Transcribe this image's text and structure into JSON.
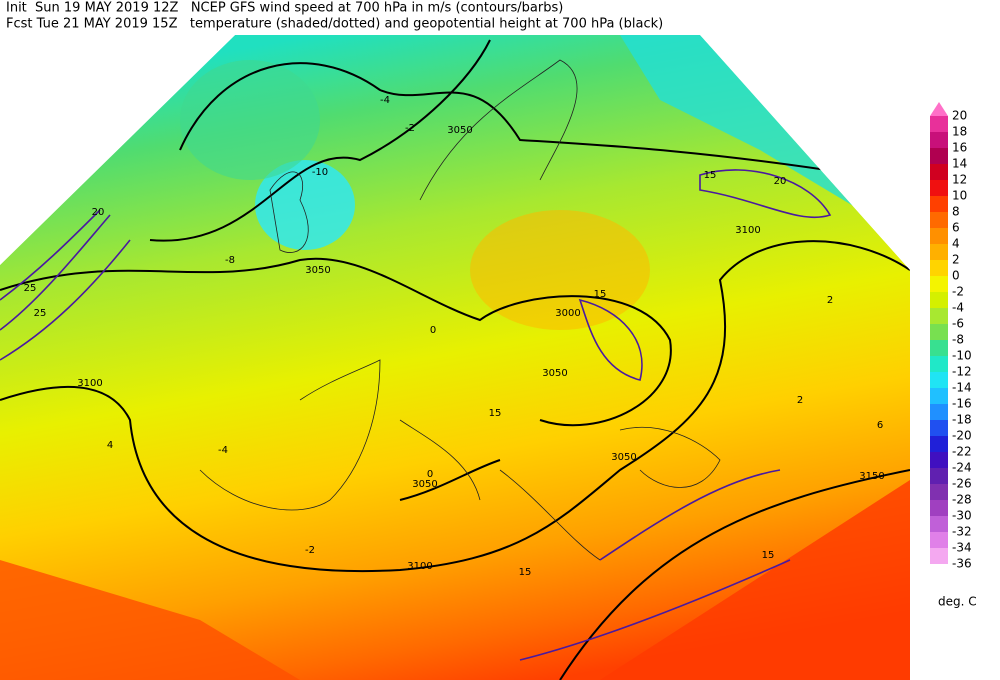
{
  "header": {
    "line1": "Init  Sun 19 MAY 2019 12Z   NCEP GFS wind speed at 700 hPa in m/s (contours/barbs)",
    "line2": "Fcst Tue 21 MAY 2019 15Z   temperature (shaded/dotted) and geopotential height at 700 hPa (black)"
  },
  "colorbar": {
    "levels": [
      20,
      18,
      16,
      14,
      12,
      10,
      8,
      6,
      4,
      2,
      0,
      -2,
      -4,
      -6,
      -8,
      -10,
      -12,
      -14,
      -16,
      -18,
      -20,
      -22,
      -24,
      -26,
      -28,
      -30,
      -32,
      -34,
      -36
    ],
    "colors": [
      "#e8309a",
      "#c8107a",
      "#b00050",
      "#d00020",
      "#f01010",
      "#ff4000",
      "#ff6a00",
      "#ff9000",
      "#ffb000",
      "#ffd400",
      "#f4f400",
      "#d4f000",
      "#a8e830",
      "#78e050",
      "#38e090",
      "#20e8c8",
      "#20e4f4",
      "#20c0ff",
      "#2090ff",
      "#2050f0",
      "#2020d8",
      "#4010c0",
      "#6020b0",
      "#8030b0",
      "#a040c0",
      "#c060d8",
      "#e080e8",
      "#f4a8f0"
    ],
    "top_color": "#ff70c8",
    "unit": "deg. C"
  },
  "map": {
    "labels": [
      "3050",
      "3050",
      "3050",
      "3100",
      "3100",
      "3000",
      "3050",
      "3050",
      "3100",
      "3150",
      "-10",
      "-8",
      "-4",
      "-2",
      "0",
      "2",
      "-2",
      "0",
      "2",
      "4",
      "-4",
      "6",
      "15",
      "20",
      "25",
      "25",
      "20",
      "15",
      "15",
      "15",
      "15"
    ]
  }
}
